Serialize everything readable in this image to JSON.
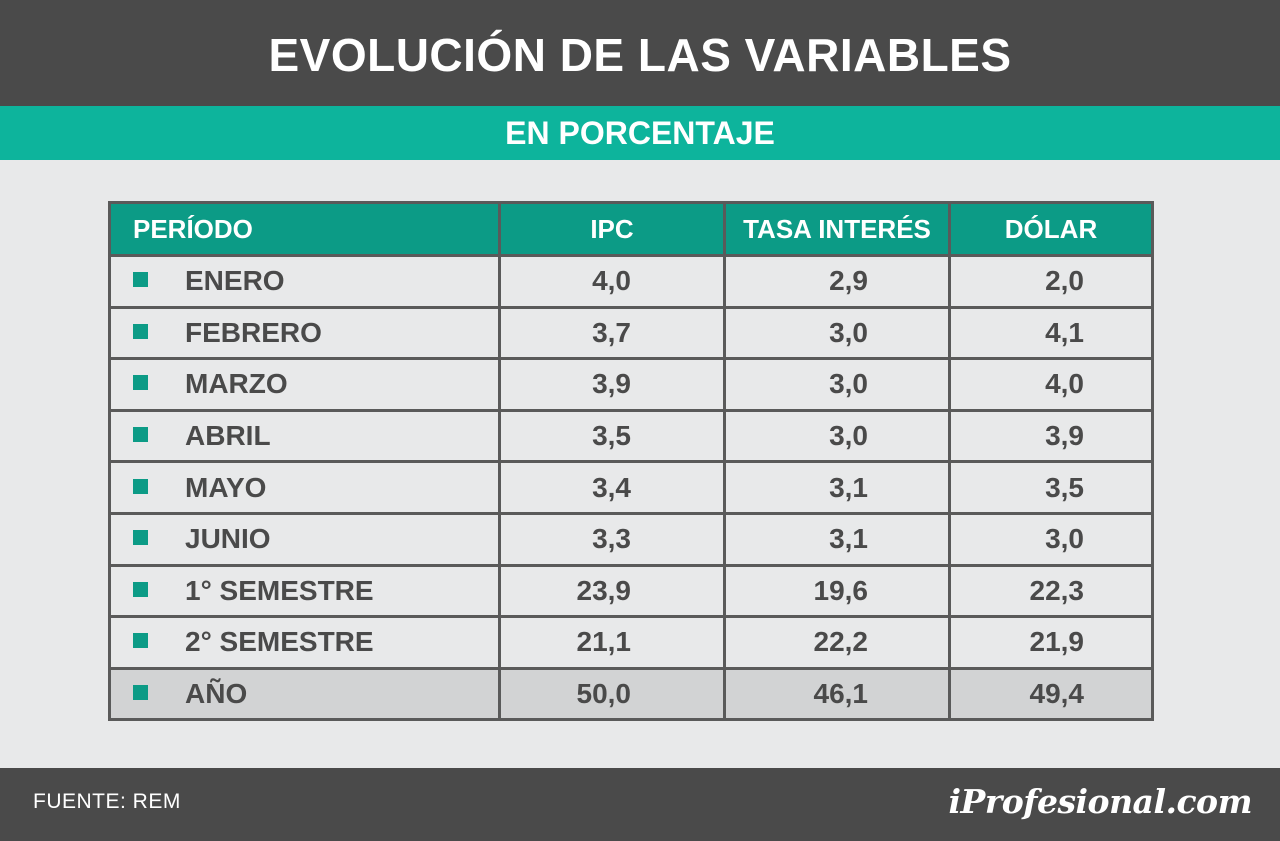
{
  "header": {
    "title": "EVOLUCIÓN DE LAS VARIABLES",
    "subtitle": "EN PORCENTAJE"
  },
  "footer": {
    "source": "FUENTE: REM",
    "brand": "iProfesional.com"
  },
  "colors": {
    "header_bg": "#4a4a4a",
    "accent": "#0db49c",
    "table_header": "#0c9b86",
    "text": "#4a4a4a"
  },
  "chart_data": {
    "type": "table",
    "title": "EVOLUCIÓN DE LAS VARIABLES",
    "subtitle": "EN PORCENTAJE",
    "columns": [
      "PERÍODO",
      "IPC",
      "TASA INTERÉS",
      "DÓLAR"
    ],
    "rows": [
      {
        "period": "ENERO",
        "ipc": "4,0",
        "tasa": "2,9",
        "dolar": "2,0"
      },
      {
        "period": "FEBRERO",
        "ipc": "3,7",
        "tasa": "3,0",
        "dolar": "4,1"
      },
      {
        "period": "MARZO",
        "ipc": "3,9",
        "tasa": "3,0",
        "dolar": "4,0"
      },
      {
        "period": "ABRIL",
        "ipc": "3,5",
        "tasa": "3,0",
        "dolar": "3,9"
      },
      {
        "period": "MAYO",
        "ipc": "3,4",
        "tasa": "3,1",
        "dolar": "3,5"
      },
      {
        "period": "JUNIO",
        "ipc": "3,3",
        "tasa": "3,1",
        "dolar": "3,0"
      },
      {
        "period": "1° SEMESTRE",
        "ipc": "23,9",
        "tasa": "19,6",
        "dolar": "22,3"
      },
      {
        "period": "2° SEMESTRE",
        "ipc": "21,1",
        "tasa": "22,2",
        "dolar": "21,9"
      },
      {
        "period": "AÑO",
        "ipc": "50,0",
        "tasa": "46,1",
        "dolar": "49,4"
      }
    ]
  }
}
